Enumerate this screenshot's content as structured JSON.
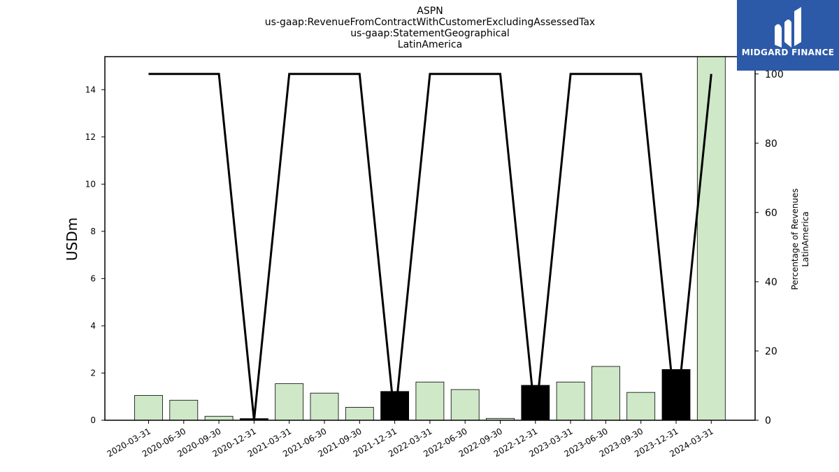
{
  "title_lines": [
    "ASPN",
    "us-gaap:RevenueFromContractWithCustomerExcludingAssessedTax",
    "us-gaap:StatementGeographical",
    "LatinAmerica"
  ],
  "logo": {
    "text": "MIDGARD FINANCE",
    "bg_color": "#2c5aa8"
  },
  "chart_data": {
    "type": "bar",
    "categories": [
      "2020-03-31",
      "2020-06-30",
      "2020-09-30",
      "2020-12-31",
      "2021-03-31",
      "2021-06-30",
      "2021-09-30",
      "2021-12-31",
      "2022-03-31",
      "2022-06-30",
      "2022-09-30",
      "2022-12-31",
      "2023-03-31",
      "2023-06-30",
      "2023-09-30",
      "2023-12-31",
      "2024-03-31"
    ],
    "series": [
      {
        "values": [
          1.05,
          0.85,
          0.17,
          0.07,
          1.55,
          1.15,
          0.55,
          1.22,
          1.62,
          1.3,
          0.08,
          1.48,
          1.62,
          2.28,
          1.18,
          2.15,
          15.4
        ],
        "bar_colors": [
          "#cfe8c8",
          "#cfe8c8",
          "#cfe8c8",
          "#000000",
          "#cfe8c8",
          "#cfe8c8",
          "#cfe8c8",
          "#000000",
          "#cfe8c8",
          "#cfe8c8",
          "#cfe8c8",
          "#000000",
          "#cfe8c8",
          "#cfe8c8",
          "#cfe8c8",
          "#000000",
          "#cfe8c8"
        ]
      },
      {
        "type": "line",
        "axis": "right",
        "values": [
          100,
          100,
          100,
          0,
          100,
          100,
          100,
          0,
          100,
          100,
          100,
          0,
          100,
          100,
          100,
          0,
          100
        ],
        "color": "#000000"
      }
    ],
    "ylabel": "USDm",
    "ylabel_right": [
      "Percentage of Revenues",
      "LatinAmerica"
    ],
    "ylim": [
      0,
      15.4
    ],
    "ylim_right": [
      0,
      105
    ],
    "yticks": [
      "0",
      "2",
      "4",
      "6",
      "8",
      "10",
      "12",
      "14"
    ],
    "yticks_right": [
      "0",
      "20",
      "40",
      "60",
      "80",
      "100"
    ],
    "grid": false
  }
}
